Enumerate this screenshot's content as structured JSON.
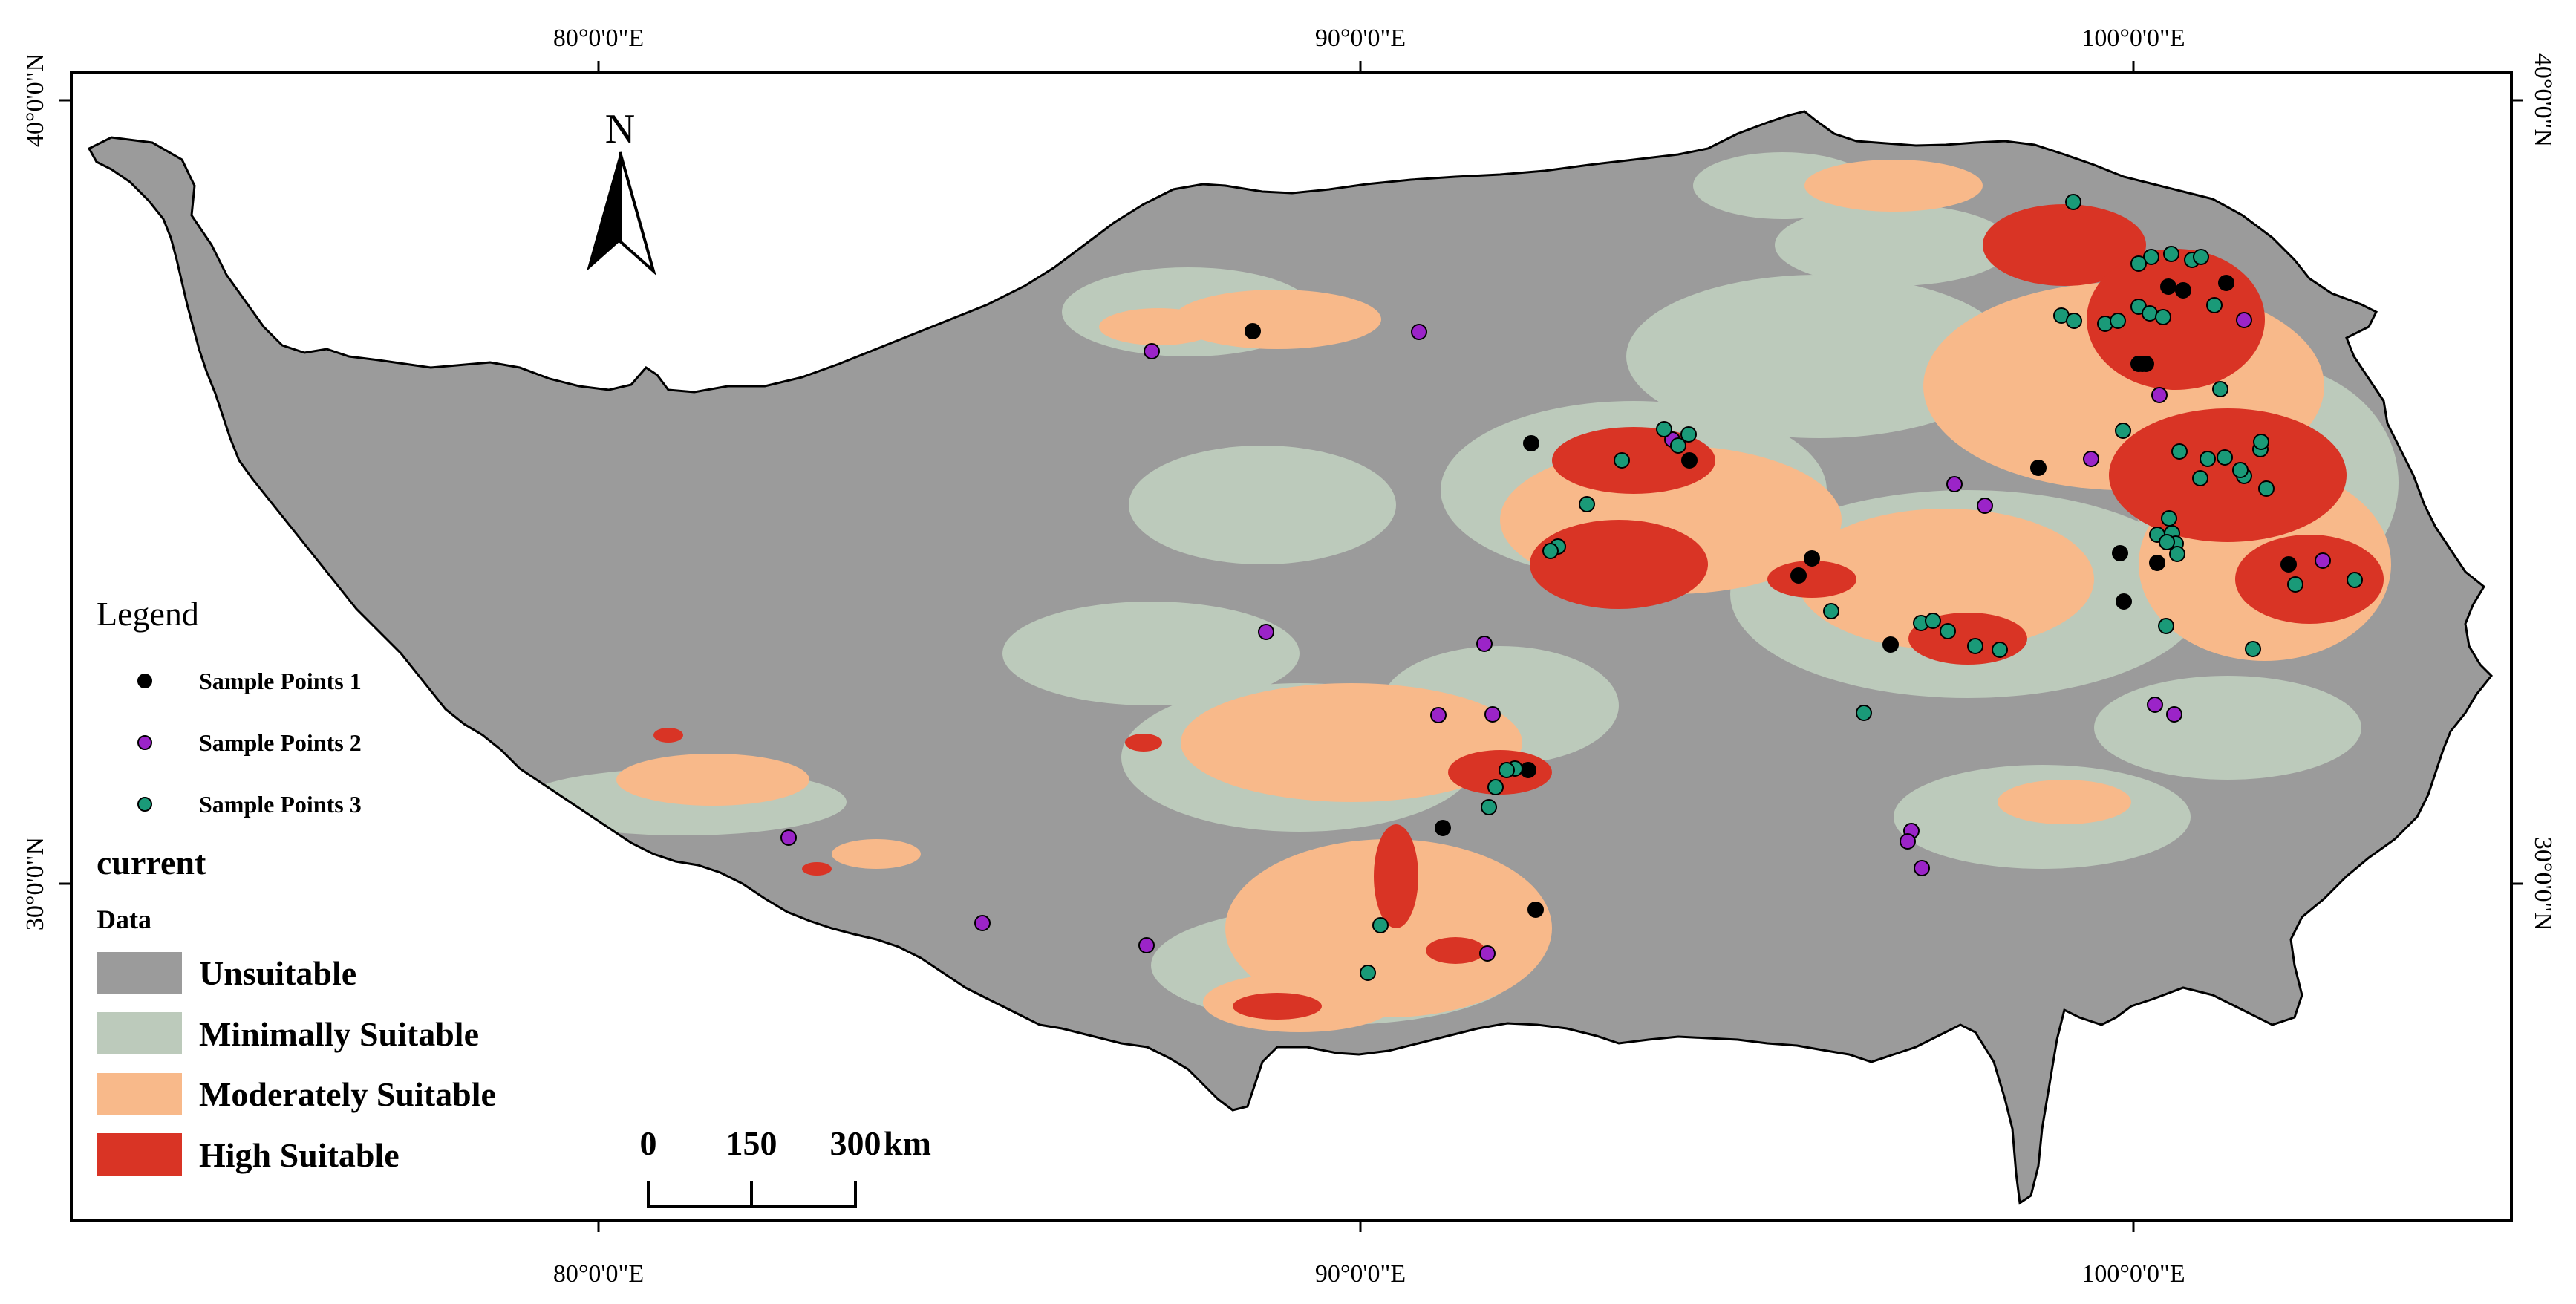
{
  "graticule": {
    "top_labels": [
      "80°0'0\"E",
      "90°0'0\"E",
      "100°0'0\"E"
    ],
    "bottom_labels": [
      "80°0'0\"E",
      "90°0'0\"E",
      "100°0'0\"E"
    ],
    "left_labels": [
      "40°0'0\"N",
      "30°0'0\"N"
    ],
    "right_labels": [
      "40°0'0\"N",
      "30°0'0\"N"
    ]
  },
  "north_arrow": {
    "label": "N"
  },
  "legend": {
    "title": "Legend",
    "points": [
      {
        "label": "Sample Points 1",
        "color": "#000000"
      },
      {
        "label": "Sample Points 2",
        "color": "#9b24c8"
      },
      {
        "label": "Sample Points 3",
        "color": "#1a9a78"
      }
    ],
    "layer_name": "current",
    "layer_field": "Data",
    "classes": [
      {
        "label": "Unsuitable",
        "color": "#9b9b9b"
      },
      {
        "label": "Minimally Suitable",
        "color": "#bccabb"
      },
      {
        "label": "Moderately Suitable",
        "color": "#f8b98a"
      },
      {
        "label": "High Suitable",
        "color": "#d93425"
      }
    ]
  },
  "scale_bar": {
    "ticks": [
      "0",
      "150",
      "300"
    ],
    "unit": "km"
  }
}
